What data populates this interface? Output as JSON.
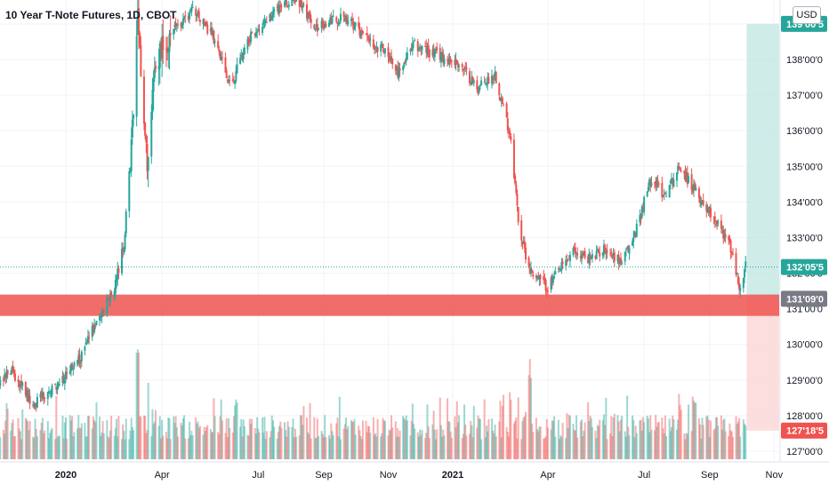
{
  "header": {
    "symbol_title": "10 Year T-Note Futures, 1D, CBOT",
    "currency": "USD"
  },
  "colors": {
    "up": "#26a69a",
    "down": "#ef5350",
    "grid": "#f0f3fa",
    "support_zone": "#ef5350",
    "target_zone": "#bfe6e0",
    "stop_zone": "#fbd6d6",
    "current_price_line": "#26a69a",
    "axis_text": "#131722",
    "tag_gray": "#787b86"
  },
  "chart_data": {
    "type": "candlestick",
    "y_axis": {
      "range": [
        126.8,
        139.7
      ],
      "ticks": [
        {
          "value": 127,
          "label": "127'00'0"
        },
        {
          "value": 128,
          "label": "128'00'0"
        },
        {
          "value": 129,
          "label": "129'00'0"
        },
        {
          "value": 130,
          "label": "130'00'0"
        },
        {
          "value": 131,
          "label": "131'00'0"
        },
        {
          "value": 132,
          "label": "132'00'0"
        },
        {
          "value": 133,
          "label": "133'00'0"
        },
        {
          "value": 134,
          "label": "134'00'0"
        },
        {
          "value": 135,
          "label": "135'00'0"
        },
        {
          "value": 136,
          "label": "136'00'0"
        },
        {
          "value": 137,
          "label": "137'00'0"
        },
        {
          "value": 138,
          "label": "138'00'0"
        },
        {
          "value": 139,
          "label": "139'00'0"
        }
      ]
    },
    "x_axis": {
      "labels": [
        "2020",
        "Apr",
        "Jul",
        "Sep",
        "Nov",
        "2021",
        "Apr",
        "Jul",
        "Sep",
        "Nov"
      ],
      "bold": [
        "2020",
        "2021"
      ]
    },
    "price_path": [
      [
        "2019-10-01",
        129.5
      ],
      [
        "2019-10-20",
        128.6
      ],
      [
        "2019-11-10",
        129.3
      ],
      [
        "2019-12-01",
        128.3
      ],
      [
        "2019-12-25",
        128.9
      ],
      [
        "2020-01-15",
        129.6
      ],
      [
        "2020-02-01",
        130.8
      ],
      [
        "2020-02-15",
        131.5
      ],
      [
        "2020-02-25",
        132.8
      ],
      [
        "2020-03-05",
        136.5
      ],
      [
        "2020-03-09",
        139.1
      ],
      [
        "2020-03-18",
        134.8
      ],
      [
        "2020-03-25",
        137.8
      ],
      [
        "2020-04-10",
        138.8
      ],
      [
        "2020-05-01",
        139.4
      ],
      [
        "2020-05-20",
        138.6
      ],
      [
        "2020-06-05",
        137.2
      ],
      [
        "2020-06-20",
        138.5
      ],
      [
        "2020-07-15",
        139.3
      ],
      [
        "2020-08-05",
        139.7
      ],
      [
        "2020-08-25",
        138.9
      ],
      [
        "2020-09-20",
        139.2
      ],
      [
        "2020-10-15",
        138.5
      ],
      [
        "2020-11-01",
        138.2
      ],
      [
        "2020-11-10",
        137.6
      ],
      [
        "2020-11-25",
        138.4
      ],
      [
        "2020-12-20",
        138.1
      ],
      [
        "2021-01-06",
        137.9
      ],
      [
        "2021-01-25",
        137.2
      ],
      [
        "2021-02-10",
        137.6
      ],
      [
        "2021-02-25",
        135.8
      ],
      [
        "2021-03-05",
        133.2
      ],
      [
        "2021-03-15",
        132.1
      ],
      [
        "2021-04-01",
        131.6
      ],
      [
        "2021-04-10",
        132.0
      ],
      [
        "2021-04-25",
        132.6
      ],
      [
        "2021-05-12",
        132.4
      ],
      [
        "2021-05-25",
        132.7
      ],
      [
        "2021-06-10",
        132.3
      ],
      [
        "2021-06-20",
        132.9
      ],
      [
        "2021-07-08",
        134.7
      ],
      [
        "2021-07-20",
        134.2
      ],
      [
        "2021-08-04",
        135.0
      ],
      [
        "2021-08-20",
        134.2
      ],
      [
        "2021-09-05",
        133.6
      ],
      [
        "2021-09-20",
        132.8
      ],
      [
        "2021-09-30",
        131.5
      ],
      [
        "2021-10-05",
        132.2
      ]
    ],
    "volume_spikes": [
      [
        "2020-03-09",
        1.0
      ],
      [
        "2020-03-20",
        0.72
      ],
      [
        "2020-06-10",
        0.55
      ],
      [
        "2021-02-25",
        0.62
      ],
      [
        "2021-03-15",
        0.8
      ],
      [
        "2021-08-18",
        0.55
      ]
    ],
    "current_price": {
      "value": 132.172,
      "label": "132'05'5"
    },
    "support_zone": {
      "low": 130.8,
      "high": 131.4
    },
    "position": {
      "entry": {
        "value": 131.28,
        "label": "131'09'0"
      },
      "target": {
        "value": 139.0,
        "label": "139'00'5"
      },
      "stop": {
        "value": 127.58,
        "label": "127'18'5"
      },
      "start_date": "2021-10-01",
      "end_date": "2021-10-31"
    }
  }
}
